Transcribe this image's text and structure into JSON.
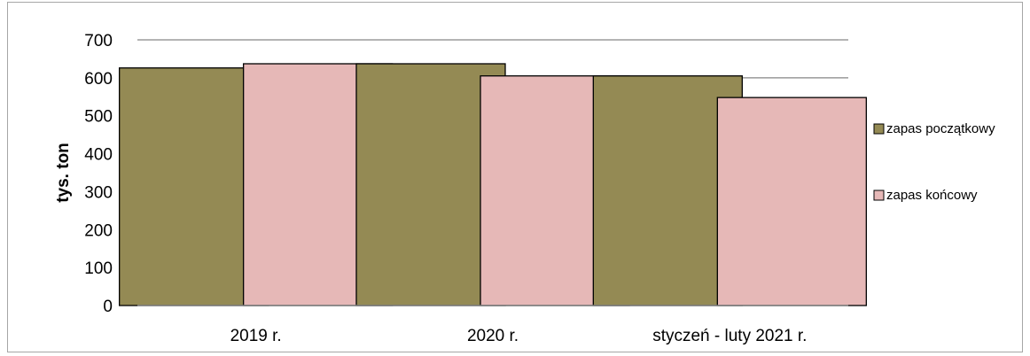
{
  "chart_data": {
    "type": "bar",
    "title": "",
    "xlabel": "",
    "ylabel": "tys. ton",
    "ylim": [
      0,
      700
    ],
    "yticks": [
      0,
      100,
      200,
      300,
      400,
      500,
      600,
      700
    ],
    "grid": true,
    "legend_position": "right",
    "categories": [
      "2019 r.",
      "2020 r.",
      "styczeń - luty 2021 r."
    ],
    "series": [
      {
        "name": "zapas początkowy",
        "color": "#948a54",
        "values": [
          626,
          637,
          605
        ]
      },
      {
        "name": "zapas  końcowy",
        "color": "#e6b8b7",
        "values": [
          637,
          605,
          548
        ]
      }
    ]
  }
}
